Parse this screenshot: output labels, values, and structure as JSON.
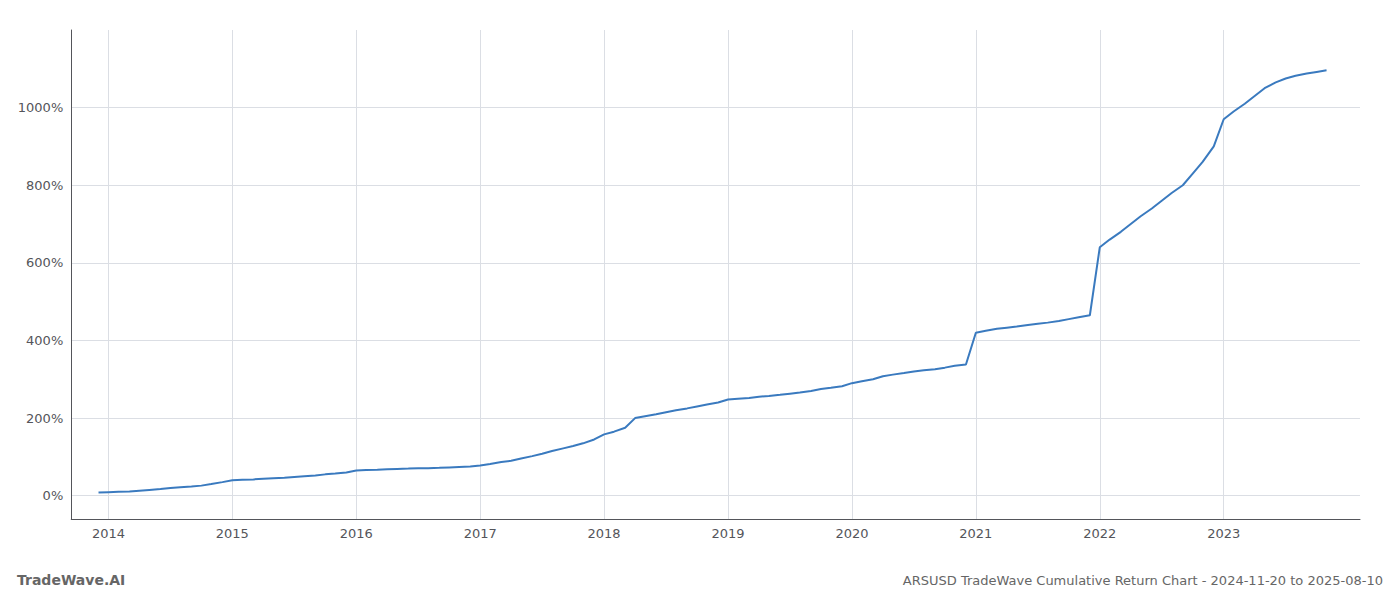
{
  "chart_data": {
    "type": "line",
    "title": "ARSUSD TradeWave Cumulative Return Chart - 2024-11-20 to 2025-08-10",
    "annotations": [
      "TradeWave.AI"
    ],
    "color": "#3a7abf",
    "grid": true,
    "x": [
      2013.92,
      2014.0,
      2014.08,
      2014.17,
      2014.25,
      2014.33,
      2014.42,
      2014.5,
      2014.58,
      2014.67,
      2014.75,
      2014.83,
      2014.92,
      2015.0,
      2015.08,
      2015.17,
      2015.25,
      2015.33,
      2015.42,
      2015.5,
      2015.58,
      2015.67,
      2015.75,
      2015.83,
      2015.92,
      2016.0,
      2016.08,
      2016.17,
      2016.25,
      2016.33,
      2016.42,
      2016.5,
      2016.58,
      2016.67,
      2016.75,
      2016.83,
      2016.92,
      2017.0,
      2017.08,
      2017.17,
      2017.25,
      2017.33,
      2017.42,
      2017.5,
      2017.58,
      2017.67,
      2017.75,
      2017.83,
      2017.92,
      2018.0,
      2018.08,
      2018.17,
      2018.25,
      2018.33,
      2018.42,
      2018.5,
      2018.58,
      2018.67,
      2018.75,
      2018.83,
      2018.92,
      2019.0,
      2019.08,
      2019.17,
      2019.25,
      2019.33,
      2019.42,
      2019.5,
      2019.58,
      2019.67,
      2019.75,
      2019.83,
      2019.92,
      2020.0,
      2020.08,
      2020.17,
      2020.25,
      2020.33,
      2020.42,
      2020.5,
      2020.58,
      2020.67,
      2020.75,
      2020.83,
      2020.92,
      2021.0,
      2021.08,
      2021.17,
      2021.25,
      2021.33,
      2021.42,
      2021.5,
      2021.58,
      2021.67,
      2021.75,
      2021.83,
      2021.92,
      2022.0,
      2022.08,
      2022.17,
      2022.25,
      2022.33,
      2022.42,
      2022.5,
      2022.58,
      2022.67,
      2022.75,
      2022.83,
      2022.92,
      2023.0,
      2023.08,
      2023.17,
      2023.25,
      2023.33,
      2023.42,
      2023.5,
      2023.58,
      2023.67,
      2023.75,
      2023.83
    ],
    "values": [
      8,
      9,
      10,
      11,
      13,
      15,
      17,
      20,
      22,
      24,
      26,
      30,
      35,
      40,
      41,
      42,
      44,
      45,
      46,
      48,
      50,
      52,
      55,
      57,
      60,
      65,
      66,
      67,
      68,
      69,
      70,
      71,
      71,
      72,
      73,
      74,
      75,
      78,
      82,
      87,
      90,
      96,
      102,
      108,
      115,
      122,
      128,
      135,
      145,
      158,
      165,
      175,
      200,
      205,
      210,
      215,
      220,
      225,
      230,
      235,
      240,
      248,
      250,
      252,
      255,
      257,
      260,
      263,
      266,
      270,
      275,
      278,
      282,
      290,
      295,
      300,
      308,
      312,
      316,
      320,
      323,
      326,
      330,
      335,
      338,
      420,
      425,
      430,
      433,
      436,
      440,
      443,
      446,
      450,
      455,
      460,
      465,
      640,
      660,
      680,
      700,
      720,
      740,
      760,
      780,
      800,
      830,
      860,
      900,
      970,
      990,
      1010,
      1030,
      1050,
      1065,
      1075,
      1082,
      1088,
      1092,
      1096
    ],
    "xlim": [
      2013.7,
      2024.1
    ],
    "xticks": [
      2014,
      2015,
      2016,
      2017,
      2018,
      2019,
      2020,
      2021,
      2022,
      2023
    ],
    "ylim": [
      -60,
      1200
    ],
    "yticks": [
      {
        "value": 0,
        "label": "0%"
      },
      {
        "value": 200,
        "label": "200%"
      },
      {
        "value": 400,
        "label": "400%"
      },
      {
        "value": 600,
        "label": "600%"
      },
      {
        "value": 800,
        "label": "800%"
      },
      {
        "value": 1000,
        "label": "1000%"
      }
    ]
  }
}
